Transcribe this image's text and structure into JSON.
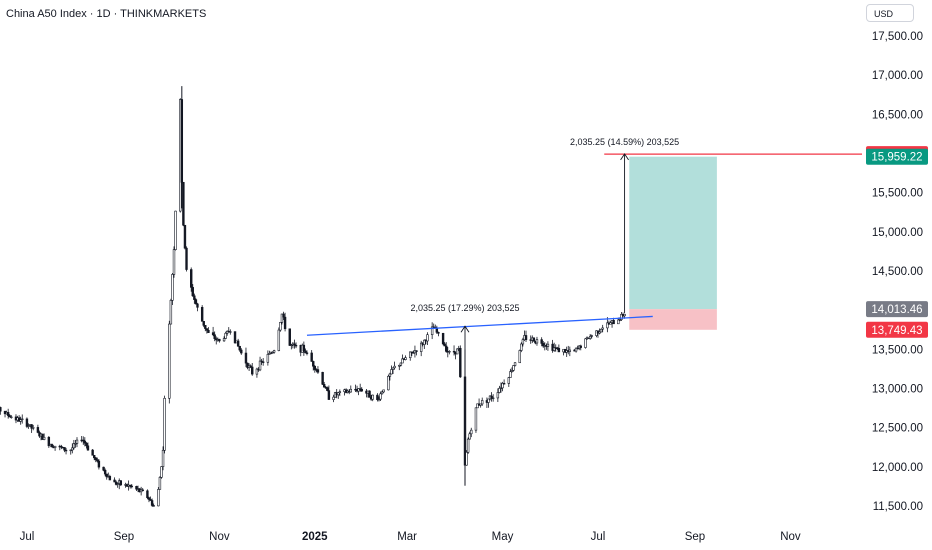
{
  "header": {
    "title": "China A50 Index · 1D · THINKMARKETS",
    "currency": "USD"
  },
  "chart_data": {
    "type": "candlestick",
    "y_axis": {
      "ticks": [
        "11,500.00",
        "12,000.00",
        "12,500.00",
        "13,000.00",
        "13,500.00",
        "14,000.00",
        "14,500.00",
        "15,000.00",
        "15,500.00",
        "16,000.00",
        "16,500.00",
        "17,000.00",
        "17,500.00"
      ],
      "range": [
        11350,
        17850
      ]
    },
    "x_axis": {
      "ticks": [
        "Jul",
        "Sep",
        "Nov",
        "2025",
        "Mar",
        "May",
        "Jul",
        "Sep",
        "Nov"
      ],
      "range": [
        "2024-06-01",
        "2025-11-30"
      ]
    },
    "price_labels": [
      {
        "name": "stop-target-line",
        "text": "15,991.65",
        "value": 15991.65,
        "color": "#f23645"
      },
      {
        "name": "take-profit",
        "text": "15,959.22",
        "value": 15959.22,
        "color": "#089981"
      },
      {
        "name": "last-price",
        "text": "14,013.46",
        "value": 14013.46,
        "color": "#787b86"
      },
      {
        "name": "stop-loss",
        "text": "13,749.43",
        "value": 13749.43,
        "color": "#f23645"
      }
    ],
    "measurements": [
      {
        "text": "2,035.25 (14.59%) 203,525"
      },
      {
        "text": "2,035.25 (17.29%) 203,525"
      }
    ],
    "horizontal_line": {
      "value": 15991.65,
      "color": "#f23645"
    },
    "trendline": {
      "from": [
        "2024-12-27",
        13680
      ],
      "to": [
        "2025-08-05",
        13920
      ],
      "color": "#2962ff"
    },
    "position": {
      "entry": 14013.46,
      "target": 15959.22,
      "stop": 13749.43,
      "from": "2025-07-21",
      "to": "2025-09-15",
      "profit_color": "#b2dfdb",
      "loss_color": "#f7c1c6"
    },
    "vertical_arrows": [
      {
        "date": "2025-04-07",
        "from": 11760,
        "to": 13795
      },
      {
        "date": "2025-07-18",
        "from": 13960,
        "to": 15995
      }
    ],
    "anchors": [
      [
        "2024-06-01",
        12880
      ],
      [
        "2024-06-20",
        12650
      ],
      [
        "2024-07-01",
        12550
      ],
      [
        "2024-07-15",
        12300
      ],
      [
        "2024-07-28",
        12200
      ],
      [
        "2024-08-05",
        12370
      ],
      [
        "2024-08-15",
        12050
      ],
      [
        "2024-08-25",
        11800
      ],
      [
        "2024-09-05",
        11750
      ],
      [
        "2024-09-15",
        11650
      ],
      [
        "2024-09-20",
        11500
      ],
      [
        "2024-09-23",
        11700
      ],
      [
        "2024-09-26",
        12200
      ],
      [
        "2024-09-27",
        12900
      ],
      [
        "2024-09-30",
        13800
      ],
      [
        "2024-10-03",
        14800
      ],
      [
        "2024-10-07",
        16700
      ],
      [
        "2024-10-08",
        15600
      ],
      [
        "2024-10-09",
        15100
      ],
      [
        "2024-10-11",
        14500
      ],
      [
        "2024-10-15",
        14200
      ],
      [
        "2024-10-20",
        13900
      ],
      [
        "2024-10-25",
        13700
      ],
      [
        "2024-11-01",
        13600
      ],
      [
        "2024-11-08",
        13750
      ],
      [
        "2024-11-15",
        13450
      ],
      [
        "2024-11-22",
        13200
      ],
      [
        "2024-11-29",
        13350
      ],
      [
        "2024-12-06",
        13500
      ],
      [
        "2024-12-11",
        13950
      ],
      [
        "2024-12-16",
        13550
      ],
      [
        "2024-12-25",
        13500
      ],
      [
        "2025-01-02",
        13250
      ],
      [
        "2025-01-10",
        12900
      ],
      [
        "2025-01-20",
        12950
      ],
      [
        "2025-01-30",
        13000
      ],
      [
        "2025-02-10",
        12850
      ],
      [
        "2025-02-20",
        13250
      ],
      [
        "2025-03-01",
        13400
      ],
      [
        "2025-03-10",
        13550
      ],
      [
        "2025-03-18",
        13780
      ],
      [
        "2025-03-28",
        13450
      ],
      [
        "2025-04-03",
        13500
      ],
      [
        "2025-04-07",
        12000
      ],
      [
        "2025-04-09",
        12350
      ],
      [
        "2025-04-15",
        12800
      ],
      [
        "2025-04-25",
        12900
      ],
      [
        "2025-05-06",
        13200
      ],
      [
        "2025-05-15",
        13650
      ],
      [
        "2025-05-25",
        13600
      ],
      [
        "2025-06-05",
        13500
      ],
      [
        "2025-06-15",
        13450
      ],
      [
        "2025-06-25",
        13650
      ],
      [
        "2025-07-05",
        13800
      ],
      [
        "2025-07-12",
        13850
      ],
      [
        "2025-07-20",
        14000
      ]
    ]
  }
}
